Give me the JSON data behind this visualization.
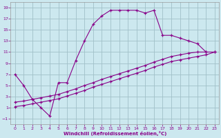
{
  "xlabel": "Windchill (Refroidissement éolien,°C)",
  "bg_color": "#cce8ef",
  "grid_color": "#a0c0c8",
  "line_color": "#880088",
  "xlim": [
    -0.5,
    23.5
  ],
  "ylim": [
    -2.0,
    20.0
  ],
  "xticks": [
    0,
    1,
    2,
    3,
    4,
    5,
    6,
    7,
    8,
    9,
    10,
    11,
    12,
    13,
    14,
    15,
    16,
    17,
    18,
    19,
    20,
    21,
    22,
    23
  ],
  "yticks": [
    -1,
    1,
    3,
    5,
    7,
    9,
    11,
    13,
    15,
    17,
    19
  ],
  "line1_x": [
    0,
    1,
    2,
    3,
    4,
    5,
    6,
    7,
    8,
    9,
    10,
    11,
    12,
    13,
    14,
    15,
    16,
    17,
    18,
    19,
    20,
    21,
    22
  ],
  "line1_y": [
    7,
    5,
    2.5,
    1,
    -0.5,
    5.5,
    5.5,
    9.5,
    13,
    16,
    17.5,
    18.5,
    18.5,
    18.5,
    18.5,
    18.0,
    18.5,
    14.0,
    14.0,
    13.5,
    13.0,
    12.5,
    11.0
  ],
  "line2_x": [
    0,
    1,
    2,
    3,
    4,
    5,
    6,
    7,
    8,
    9,
    10,
    11,
    12,
    13,
    14,
    15,
    16,
    17,
    18,
    19,
    20,
    21,
    22,
    23
  ],
  "line2_y": [
    2.0,
    2.2,
    2.5,
    2.8,
    3.1,
    3.4,
    3.9,
    4.4,
    5.0,
    5.5,
    6.1,
    6.6,
    7.1,
    7.6,
    8.1,
    8.6,
    9.2,
    9.7,
    10.2,
    10.5,
    10.8,
    11.0,
    11.0,
    11.0
  ],
  "line3_x": [
    0,
    1,
    2,
    3,
    4,
    5,
    6,
    7,
    8,
    9,
    10,
    11,
    12,
    13,
    14,
    15,
    16,
    17,
    18,
    19,
    20,
    21,
    22,
    23
  ],
  "line3_y": [
    1.2,
    1.4,
    1.7,
    2.0,
    2.3,
    2.6,
    3.1,
    3.6,
    4.1,
    4.7,
    5.2,
    5.7,
    6.2,
    6.7,
    7.2,
    7.7,
    8.3,
    8.8,
    9.3,
    9.6,
    9.9,
    10.2,
    10.5,
    11.0
  ]
}
